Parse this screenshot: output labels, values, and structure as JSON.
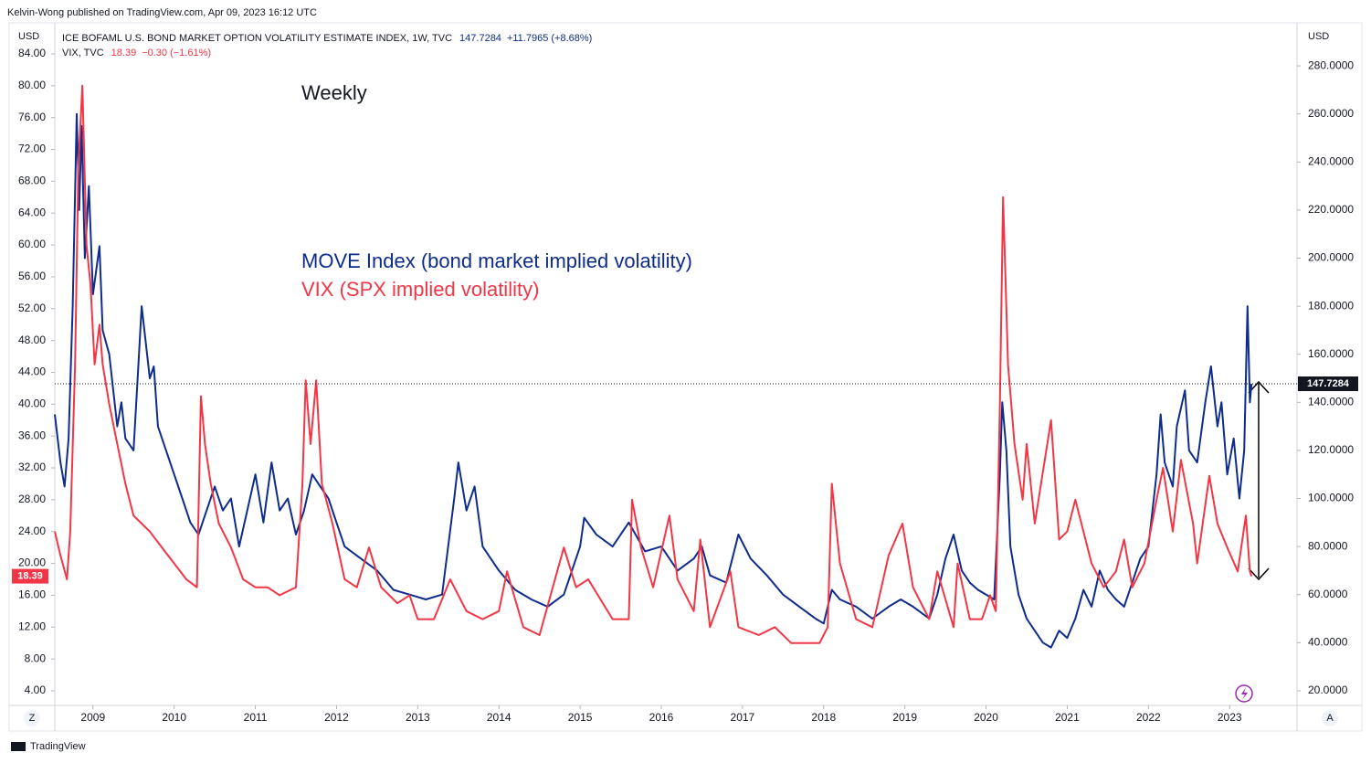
{
  "header": "Kelvin-Wong published on TradingView.com, Apr 09, 2023 16:12 UTC",
  "footer": "TradingView",
  "buttons": {
    "left": "Z",
    "right": "A"
  },
  "chart_data": {
    "type": "line",
    "annotations": [
      "Weekly",
      "MOVE Index (bond market implied volatility)",
      "VIX (SPX implied volatility)"
    ],
    "yaxis_label": "USD",
    "y2axis_label": "USD",
    "grid": false,
    "xlim": [
      2008.53,
      2023.83
    ],
    "xticks": [
      2009,
      2010,
      2011,
      2012,
      2013,
      2014,
      2015,
      2016,
      2017,
      2018,
      2019,
      2020,
      2021,
      2022,
      2023
    ],
    "ylim": [
      2.16,
      87.9
    ],
    "yticks": [
      {
        "value": 4,
        "label": "4.00"
      },
      {
        "value": 8,
        "label": "8.00"
      },
      {
        "value": 12,
        "label": "12.00"
      },
      {
        "value": 16,
        "label": "16.00"
      },
      {
        "value": 20,
        "label": "20.00"
      },
      {
        "value": 24,
        "label": "24.00"
      },
      {
        "value": 28,
        "label": "28.00"
      },
      {
        "value": 32,
        "label": "32.00"
      },
      {
        "value": 36,
        "label": "36.00"
      },
      {
        "value": 40,
        "label": "40.00"
      },
      {
        "value": 44,
        "label": "44.00"
      },
      {
        "value": 48,
        "label": "48.00"
      },
      {
        "value": 52,
        "label": "52.00"
      },
      {
        "value": 56,
        "label": "56.00"
      },
      {
        "value": 60,
        "label": "60.00"
      },
      {
        "value": 64,
        "label": "64.00"
      },
      {
        "value": 68,
        "label": "68.00"
      },
      {
        "value": 72,
        "label": "72.00"
      },
      {
        "value": 76,
        "label": "76.00"
      },
      {
        "value": 80,
        "label": "80.00"
      },
      {
        "value": 84,
        "label": "84.00"
      }
    ],
    "y2lim": [
      13.9,
      297.9
    ],
    "y2ticks": [
      {
        "value": 20,
        "label": "20.0000"
      },
      {
        "value": 40,
        "label": "40.0000"
      },
      {
        "value": 60,
        "label": "60.0000"
      },
      {
        "value": 80,
        "label": "80.0000"
      },
      {
        "value": 100,
        "label": "100.0000"
      },
      {
        "value": 120,
        "label": "120.0000"
      },
      {
        "value": 140,
        "label": "140.0000"
      },
      {
        "value": 160,
        "label": "160.0000"
      },
      {
        "value": 180,
        "label": "180.0000"
      },
      {
        "value": 200,
        "label": "200.0000"
      },
      {
        "value": 220,
        "label": "220.0000"
      },
      {
        "value": 240,
        "label": "240.0000"
      },
      {
        "value": 260,
        "label": "260.0000"
      },
      {
        "value": 280,
        "label": "280.0000"
      }
    ],
    "series": [
      {
        "name": "ICE BOFAML U.S. BOND MARKET OPTION VOLATILITY ESTIMATE INDEX, 1W, TVC",
        "change": "+11.7965 (+8.68%)",
        "color": "#0d2c8c",
        "axis": "y2",
        "x": [
          2008.53,
          2008.6,
          2008.65,
          2008.7,
          2008.75,
          2008.8,
          2008.83,
          2008.86,
          2008.9,
          2008.95,
          2009.0,
          2009.08,
          2009.12,
          2009.2,
          2009.3,
          2009.35,
          2009.4,
          2009.5,
          2009.55,
          2009.6,
          2009.7,
          2009.75,
          2009.8,
          2009.9,
          2010.0,
          2010.1,
          2010.2,
          2010.3,
          2010.4,
          2010.5,
          2010.6,
          2010.7,
          2010.8,
          2010.9,
          2011.0,
          2011.1,
          2011.2,
          2011.3,
          2011.4,
          2011.5,
          2011.6,
          2011.7,
          2011.8,
          2011.9,
          2012.0,
          2012.1,
          2012.3,
          2012.5,
          2012.7,
          2012.9,
          2013.1,
          2013.3,
          2013.45,
          2013.5,
          2013.6,
          2013.7,
          2013.8,
          2014.0,
          2014.2,
          2014.4,
          2014.6,
          2014.8,
          2015.0,
          2015.05,
          2015.2,
          2015.4,
          2015.6,
          2015.8,
          2016.0,
          2016.2,
          2016.4,
          2016.5,
          2016.6,
          2016.8,
          2016.95,
          2017.1,
          2017.3,
          2017.5,
          2017.7,
          2017.9,
          2018.0,
          2018.1,
          2018.2,
          2018.4,
          2018.6,
          2018.8,
          2018.95,
          2019.1,
          2019.3,
          2019.4,
          2019.5,
          2019.6,
          2019.7,
          2019.8,
          2019.9,
          2020.0,
          2020.1,
          2020.17,
          2020.2,
          2020.25,
          2020.3,
          2020.4,
          2020.5,
          2020.6,
          2020.7,
          2020.8,
          2020.9,
          2021.0,
          2021.1,
          2021.2,
          2021.3,
          2021.4,
          2021.5,
          2021.6,
          2021.7,
          2021.8,
          2021.9,
          2022.0,
          2022.1,
          2022.15,
          2022.2,
          2022.3,
          2022.35,
          2022.45,
          2022.5,
          2022.6,
          2022.7,
          2022.77,
          2022.85,
          2022.9,
          2022.97,
          2023.05,
          2023.12,
          2023.18,
          2023.22,
          2023.25,
          2023.27
        ],
        "values": [
          135,
          115,
          105,
          125,
          180,
          260,
          220,
          255,
          200,
          230,
          185,
          205,
          170,
          160,
          130,
          140,
          125,
          120,
          150,
          180,
          150,
          155,
          130,
          120,
          110,
          100,
          90,
          85,
          95,
          105,
          95,
          100,
          80,
          95,
          110,
          90,
          115,
          95,
          100,
          85,
          95,
          110,
          105,
          100,
          90,
          80,
          75,
          70,
          62,
          60,
          58,
          60,
          100,
          115,
          95,
          105,
          80,
          70,
          62,
          58,
          55,
          60,
          80,
          92,
          85,
          80,
          90,
          78,
          80,
          70,
          75,
          80,
          68,
          65,
          85,
          75,
          68,
          60,
          55,
          50,
          48,
          62,
          58,
          55,
          50,
          55,
          58,
          55,
          50,
          60,
          75,
          85,
          70,
          65,
          62,
          60,
          58,
          110,
          140,
          120,
          80,
          60,
          50,
          45,
          40,
          38,
          45,
          42,
          50,
          62,
          55,
          70,
          62,
          58,
          55,
          65,
          75,
          80,
          110,
          135,
          115,
          105,
          130,
          145,
          120,
          115,
          140,
          155,
          130,
          140,
          110,
          125,
          100,
          120,
          180,
          140,
          147.7284
        ]
      },
      {
        "name": "VIX, TVC",
        "change": "−0.30 (−1.61%)",
        "color": "#f23645",
        "axis": "y",
        "x": [
          2008.53,
          2008.6,
          2008.68,
          2008.72,
          2008.78,
          2008.82,
          2008.87,
          2008.92,
          2008.97,
          2009.02,
          2009.08,
          2009.12,
          2009.2,
          2009.3,
          2009.4,
          2009.5,
          2009.6,
          2009.7,
          2009.85,
          2010.0,
          2010.15,
          2010.28,
          2010.33,
          2010.38,
          2010.45,
          2010.55,
          2010.7,
          2010.85,
          2011.0,
          2011.15,
          2011.3,
          2011.5,
          2011.58,
          2011.62,
          2011.68,
          2011.75,
          2011.82,
          2011.95,
          2012.1,
          2012.25,
          2012.4,
          2012.55,
          2012.75,
          2012.9,
          2013.0,
          2013.2,
          2013.4,
          2013.6,
          2013.8,
          2014.0,
          2014.1,
          2014.3,
          2014.5,
          2014.8,
          2014.95,
          2015.1,
          2015.4,
          2015.6,
          2015.64,
          2015.75,
          2015.9,
          2016.1,
          2016.2,
          2016.4,
          2016.48,
          2016.6,
          2016.85,
          2016.95,
          2017.2,
          2017.4,
          2017.6,
          2017.8,
          2017.95,
          2018.05,
          2018.1,
          2018.2,
          2018.4,
          2018.6,
          2018.8,
          2018.97,
          2019.1,
          2019.3,
          2019.4,
          2019.6,
          2019.65,
          2019.8,
          2019.95,
          2020.05,
          2020.12,
          2020.17,
          2020.21,
          2020.27,
          2020.35,
          2020.45,
          2020.5,
          2020.6,
          2020.8,
          2020.9,
          2021.0,
          2021.1,
          2021.3,
          2021.45,
          2021.6,
          2021.7,
          2021.8,
          2021.95,
          2022.1,
          2022.18,
          2022.3,
          2022.4,
          2022.55,
          2022.6,
          2022.75,
          2022.85,
          2022.97,
          2023.1,
          2023.2,
          2023.25,
          2023.27
        ],
        "values": [
          24,
          21,
          18,
          24,
          45,
          70,
          80,
          60,
          55,
          45,
          50,
          45,
          40,
          35,
          30,
          26,
          25,
          24,
          22,
          20,
          18,
          17,
          41,
          35,
          30,
          25,
          22,
          18,
          17,
          17,
          16,
          17,
          30,
          43,
          35,
          43,
          30,
          25,
          18,
          17,
          22,
          17,
          15,
          16,
          13,
          13,
          18,
          14,
          13,
          14,
          19,
          12,
          11,
          22,
          17,
          18,
          13,
          13,
          28,
          22,
          17,
          26,
          18,
          14,
          23,
          12,
          19,
          12,
          11,
          12,
          10,
          10,
          10,
          12,
          30,
          20,
          13,
          12,
          21,
          25,
          17,
          13,
          19,
          12,
          20,
          13,
          13,
          16,
          14,
          40,
          66,
          45,
          35,
          28,
          35,
          25,
          38,
          23,
          24,
          28,
          20,
          17,
          19,
          23,
          17,
          20,
          28,
          32,
          24,
          33,
          25,
          20,
          31,
          25,
          22,
          19,
          26,
          19,
          18.39
        ]
      }
    ]
  }
}
